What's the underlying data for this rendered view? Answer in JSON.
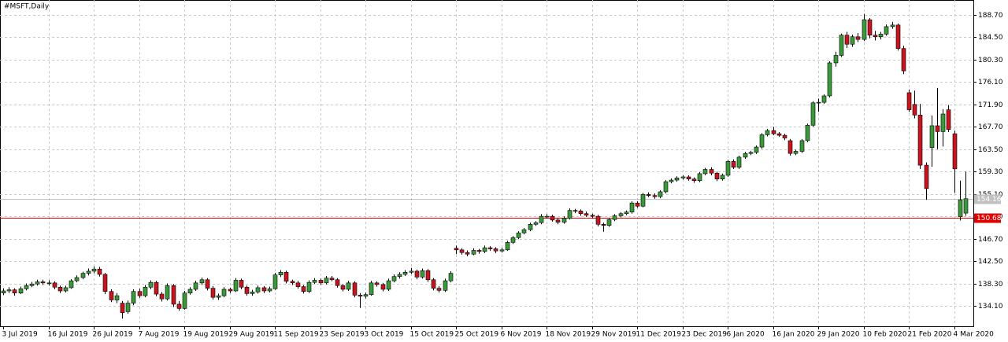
{
  "chart_data": {
    "type": "candlestick",
    "title": "#MSFT,Daily",
    "up_color": "#3a9a3a",
    "down_color": "#c8141e",
    "grid": true,
    "ylim": [
      130.26,
      191.5
    ],
    "yticks": [
      {
        "value": 134.1,
        "label": "134.10"
      },
      {
        "value": 138.3,
        "label": "138.30"
      },
      {
        "value": 142.5,
        "label": "142.50"
      },
      {
        "value": 146.7,
        "label": "146.70"
      },
      {
        "value": 150.9,
        "label": "150.90"
      },
      {
        "value": 155.1,
        "label": "155.10"
      },
      {
        "value": 159.3,
        "label": "159.30"
      },
      {
        "value": 163.5,
        "label": "163.50"
      },
      {
        "value": 167.7,
        "label": "167.70"
      },
      {
        "value": 171.9,
        "label": "171.90"
      },
      {
        "value": 176.1,
        "label": "176.10"
      },
      {
        "value": 180.3,
        "label": "180.30"
      },
      {
        "value": 184.5,
        "label": "184.50"
      },
      {
        "value": 188.7,
        "label": "188.70"
      }
    ],
    "price_lines": [
      {
        "value": 154.16,
        "color": "#c0c0c0"
      },
      {
        "value": 150.68,
        "color": "#e00000"
      }
    ],
    "categories": [
      "3 Jul 2019",
      null,
      null,
      null,
      null,
      null,
      null,
      null,
      "16 Jul 2019",
      null,
      null,
      null,
      null,
      null,
      null,
      null,
      "26 Jul 2019",
      null,
      null,
      null,
      null,
      null,
      null,
      null,
      "7 Aug 2019",
      null,
      null,
      null,
      null,
      null,
      null,
      null,
      "19 Aug 2019",
      null,
      null,
      null,
      null,
      null,
      null,
      null,
      "29 Aug 2019",
      null,
      null,
      null,
      null,
      null,
      null,
      null,
      "11 Sep 2019",
      null,
      null,
      null,
      null,
      null,
      null,
      null,
      "23 Sep 2019",
      null,
      null,
      null,
      null,
      null,
      null,
      null,
      "3 Oct 2019",
      null,
      null,
      null,
      null,
      null,
      null,
      null,
      "15 Oct 2019",
      null,
      null,
      null,
      null,
      null,
      null,
      null,
      "25 Oct 2019",
      null,
      null,
      null,
      null,
      null,
      null,
      null,
      "6 Nov 2019",
      null,
      null,
      null,
      null,
      null,
      null,
      null,
      "18 Nov 2019",
      null,
      null,
      null,
      null,
      null,
      null,
      null,
      "29 Nov 2019",
      null,
      null,
      null,
      null,
      null,
      null,
      null,
      "11 Dec 2019",
      null,
      null,
      null,
      null,
      null,
      null,
      null,
      "23 Dec 2019",
      null,
      null,
      null,
      null,
      null,
      null,
      null,
      "6 Jan 2020",
      null,
      null,
      null,
      null,
      null,
      null,
      null,
      "16 Jan 2020",
      null,
      null,
      null,
      null,
      null,
      null,
      null,
      "29 Jan 2020",
      null,
      null,
      null,
      null,
      null,
      null,
      null,
      "10 Feb 2020",
      null,
      null,
      null,
      null,
      null,
      null,
      null,
      "21 Feb 2020",
      null,
      null,
      null,
      null,
      null,
      null,
      null,
      "4 Mar 2020",
      null,
      null
    ],
    "ohlc": [
      [
        136.5,
        137.4,
        136.1,
        136.9
      ],
      [
        136.9,
        137.6,
        136.5,
        137.1
      ],
      [
        137.1,
        137.4,
        136.0,
        136.5
      ],
      [
        136.5,
        137.7,
        136.3,
        137.3
      ],
      [
        137.3,
        138.3,
        137.0,
        137.9
      ],
      [
        137.9,
        138.6,
        137.6,
        138.2
      ],
      [
        138.2,
        139.0,
        137.9,
        138.6
      ],
      [
        138.6,
        139.0,
        138.0,
        138.4
      ],
      [
        138.4,
        138.9,
        137.9,
        138.4
      ],
      [
        138.4,
        138.7,
        137.2,
        137.6
      ],
      [
        137.6,
        137.9,
        136.5,
        136.9
      ],
      [
        136.9,
        137.9,
        136.6,
        137.5
      ],
      [
        137.5,
        139.1,
        137.3,
        138.8
      ],
      [
        138.8,
        139.8,
        138.5,
        139.4
      ],
      [
        139.4,
        140.5,
        139.1,
        140.2
      ],
      [
        140.2,
        141.1,
        139.8,
        140.6
      ],
      [
        140.6,
        141.5,
        140.2,
        141.0
      ],
      [
        141.0,
        141.4,
        139.6,
        140.0
      ],
      [
        140.0,
        140.3,
        136.3,
        136.8
      ],
      [
        136.8,
        137.2,
        134.8,
        135.2
      ],
      [
        135.2,
        136.5,
        134.6,
        136.0
      ],
      [
        134.6,
        135.0,
        131.7,
        132.8
      ],
      [
        133.0,
        135.1,
        132.6,
        134.6
      ],
      [
        134.6,
        137.2,
        134.2,
        136.8
      ],
      [
        136.8,
        137.3,
        135.6,
        136.0
      ],
      [
        136.0,
        138.0,
        135.7,
        137.6
      ],
      [
        137.6,
        138.9,
        137.2,
        138.5
      ],
      [
        138.5,
        138.8,
        135.9,
        136.3
      ],
      [
        136.3,
        136.7,
        134.9,
        135.4
      ],
      [
        135.4,
        138.3,
        135.1,
        137.9
      ],
      [
        137.9,
        138.2,
        133.9,
        134.4
      ],
      [
        134.4,
        135.0,
        133.2,
        133.6
      ],
      [
        133.6,
        136.9,
        133.4,
        136.5
      ],
      [
        136.5,
        137.6,
        136.2,
        137.2
      ],
      [
        137.2,
        138.8,
        136.9,
        138.4
      ],
      [
        138.4,
        139.4,
        138.0,
        139.0
      ],
      [
        139.0,
        139.3,
        137.0,
        137.4
      ],
      [
        137.4,
        137.8,
        135.3,
        135.7
      ],
      [
        135.7,
        136.4,
        135.2,
        136.0
      ],
      [
        136.0,
        137.6,
        135.7,
        137.2
      ],
      [
        137.2,
        137.5,
        136.5,
        136.9
      ],
      [
        136.9,
        139.3,
        136.7,
        138.9
      ],
      [
        138.9,
        139.2,
        137.2,
        137.6
      ],
      [
        137.6,
        137.9,
        136.0,
        136.4
      ],
      [
        136.4,
        137.1,
        136.0,
        136.7
      ],
      [
        136.7,
        137.9,
        136.4,
        137.5
      ],
      [
        137.5,
        137.8,
        136.5,
        136.9
      ],
      [
        136.9,
        137.7,
        136.6,
        137.3
      ],
      [
        137.3,
        140.3,
        137.1,
        139.9
      ],
      [
        139.9,
        140.8,
        139.5,
        140.4
      ],
      [
        140.4,
        140.7,
        138.3,
        138.7
      ],
      [
        138.7,
        139.0,
        138.0,
        138.4
      ],
      [
        138.4,
        138.8,
        137.3,
        137.7
      ],
      [
        137.7,
        138.0,
        136.4,
        136.8
      ],
      [
        136.8,
        138.9,
        136.5,
        138.5
      ],
      [
        138.5,
        139.3,
        138.2,
        138.9
      ],
      [
        138.9,
        139.2,
        138.0,
        138.4
      ],
      [
        138.4,
        139.7,
        138.1,
        139.3
      ],
      [
        139.3,
        139.7,
        138.7,
        139.0
      ],
      [
        139.0,
        139.3,
        137.5,
        137.9
      ],
      [
        137.9,
        138.2,
        136.8,
        137.2
      ],
      [
        137.2,
        138.8,
        136.9,
        138.4
      ],
      [
        138.4,
        138.7,
        135.7,
        136.1
      ],
      [
        136.1,
        136.5,
        133.7,
        135.9
      ],
      [
        135.9,
        136.6,
        135.5,
        136.2
      ],
      [
        136.2,
        138.8,
        136.0,
        138.4
      ],
      [
        138.4,
        138.7,
        137.7,
        138.1
      ],
      [
        138.1,
        138.4,
        136.8,
        137.2
      ],
      [
        137.2,
        139.2,
        136.9,
        138.8
      ],
      [
        138.8,
        140.0,
        138.5,
        139.6
      ],
      [
        139.6,
        140.4,
        139.2,
        140.0
      ],
      [
        140.0,
        140.8,
        139.7,
        140.4
      ],
      [
        140.4,
        141.2,
        140.1,
        140.6
      ],
      [
        140.6,
        140.9,
        139.1,
        139.5
      ],
      [
        139.5,
        141.1,
        139.2,
        140.7
      ],
      [
        140.7,
        141.0,
        138.6,
        139.0
      ],
      [
        139.0,
        139.3,
        137.0,
        137.4
      ],
      [
        137.4,
        137.8,
        136.6,
        137.0
      ],
      [
        137.0,
        139.2,
        136.7,
        138.8
      ],
      [
        138.8,
        140.6,
        138.5,
        140.2
      ],
      [
        144.9,
        145.4,
        143.8,
        144.6
      ],
      [
        144.6,
        144.9,
        143.7,
        144.1
      ],
      [
        144.1,
        144.5,
        143.4,
        143.8
      ],
      [
        143.8,
        144.9,
        143.6,
        144.5
      ],
      [
        144.5,
        144.8,
        143.9,
        144.3
      ],
      [
        144.3,
        145.4,
        144.0,
        145.0
      ],
      [
        145.0,
        145.3,
        144.4,
        144.8
      ],
      [
        144.8,
        145.1,
        144.0,
        144.4
      ],
      [
        144.4,
        145.0,
        144.1,
        144.6
      ],
      [
        144.6,
        146.3,
        144.4,
        146.0
      ],
      [
        146.0,
        147.2,
        145.7,
        146.9
      ],
      [
        146.9,
        148.1,
        146.6,
        147.8
      ],
      [
        147.8,
        148.7,
        147.5,
        148.4
      ],
      [
        148.4,
        149.7,
        148.1,
        149.4
      ],
      [
        149.4,
        150.0,
        149.1,
        149.7
      ],
      [
        149.7,
        151.3,
        149.4,
        150.9
      ],
      [
        150.9,
        151.3,
        150.5,
        150.9
      ],
      [
        150.9,
        151.2,
        149.9,
        150.2
      ],
      [
        150.2,
        150.5,
        149.4,
        149.8
      ],
      [
        149.8,
        150.9,
        149.5,
        150.5
      ],
      [
        150.5,
        152.4,
        150.3,
        152.0
      ],
      [
        152.0,
        152.3,
        151.5,
        151.9
      ],
      [
        151.9,
        152.2,
        151.0,
        151.4
      ],
      [
        151.4,
        151.8,
        150.8,
        151.1
      ],
      [
        151.1,
        151.4,
        150.6,
        150.9
      ],
      [
        150.9,
        151.2,
        149.0,
        149.4
      ],
      [
        149.4,
        149.7,
        148.0,
        149.2
      ],
      [
        149.2,
        150.6,
        148.9,
        150.3
      ],
      [
        150.3,
        151.3,
        150.0,
        151.0
      ],
      [
        151.0,
        151.7,
        150.7,
        151.4
      ],
      [
        151.4,
        152.0,
        151.1,
        151.7
      ],
      [
        151.7,
        153.7,
        151.4,
        153.4
      ],
      [
        153.4,
        153.7,
        152.5,
        152.8
      ],
      [
        152.8,
        155.3,
        152.6,
        155.0
      ],
      [
        155.0,
        155.4,
        154.5,
        154.8
      ],
      [
        154.8,
        155.2,
        154.2,
        154.6
      ],
      [
        154.6,
        155.8,
        154.3,
        155.5
      ],
      [
        155.5,
        157.7,
        155.2,
        157.4
      ],
      [
        157.4,
        158.0,
        157.1,
        157.7
      ],
      [
        157.7,
        158.4,
        157.4,
        158.1
      ],
      [
        158.1,
        158.6,
        157.8,
        158.3
      ],
      [
        158.3,
        158.6,
        157.6,
        157.9
      ],
      [
        157.9,
        158.2,
        157.2,
        157.6
      ],
      [
        157.6,
        159.2,
        157.3,
        158.9
      ],
      [
        158.9,
        160.0,
        158.6,
        159.7
      ],
      [
        159.7,
        160.1,
        158.6,
        159.0
      ],
      [
        159.0,
        159.3,
        157.5,
        157.9
      ],
      [
        157.9,
        158.9,
        157.6,
        158.6
      ],
      [
        158.6,
        161.5,
        158.3,
        161.2
      ],
      [
        161.2,
        161.6,
        159.8,
        160.1
      ],
      [
        160.1,
        162.3,
        159.8,
        162.0
      ],
      [
        162.0,
        163.0,
        161.7,
        162.7
      ],
      [
        162.7,
        163.2,
        162.4,
        162.9
      ],
      [
        162.9,
        164.2,
        162.6,
        163.9
      ],
      [
        163.9,
        166.5,
        163.6,
        166.2
      ],
      [
        166.2,
        167.3,
        165.9,
        167.0
      ],
      [
        167.0,
        167.7,
        166.1,
        166.4
      ],
      [
        166.4,
        166.7,
        165.8,
        166.1
      ],
      [
        166.1,
        166.4,
        165.2,
        165.6
      ],
      [
        165.1,
        165.4,
        162.3,
        162.7
      ],
      [
        162.7,
        163.4,
        162.4,
        163.1
      ],
      [
        163.1,
        165.4,
        162.8,
        165.1
      ],
      [
        165.1,
        168.3,
        164.8,
        168.0
      ],
      [
        168.0,
        172.5,
        167.7,
        172.2
      ],
      [
        172.2,
        173.0,
        170.5,
        172.3
      ],
      [
        172.3,
        173.8,
        172.0,
        173.5
      ],
      [
        173.5,
        180.0,
        173.2,
        179.7
      ],
      [
        179.7,
        181.8,
        179.0,
        181.1
      ],
      [
        181.1,
        185.2,
        180.8,
        184.9
      ],
      [
        184.9,
        185.5,
        182.5,
        183.2
      ],
      [
        183.2,
        185.0,
        182.7,
        184.6
      ],
      [
        184.6,
        185.3,
        183.6,
        184.1
      ],
      [
        184.1,
        188.9,
        183.8,
        187.8
      ],
      [
        187.8,
        188.1,
        184.3,
        184.9
      ],
      [
        184.9,
        185.7,
        183.9,
        184.6
      ],
      [
        184.6,
        185.5,
        184.1,
        185.1
      ],
      [
        185.1,
        186.9,
        184.8,
        186.5
      ],
      [
        186.5,
        187.4,
        186.1,
        186.8
      ],
      [
        186.8,
        187.1,
        182.0,
        182.4
      ],
      [
        182.4,
        182.9,
        177.6,
        178.2
      ],
      [
        174.1,
        174.7,
        170.5,
        170.9
      ],
      [
        171.9,
        174.5,
        169.3,
        169.9
      ],
      [
        169.9,
        172.0,
        159.8,
        160.5
      ],
      [
        160.5,
        161.0,
        154.0,
        156.1
      ],
      [
        163.8,
        169.8,
        160.2,
        167.9
      ],
      [
        167.9,
        175.0,
        163.5,
        166.8
      ],
      [
        166.8,
        171.0,
        164.0,
        170.1
      ],
      [
        170.9,
        171.8,
        166.7,
        167.2
      ],
      [
        166.4,
        167.0,
        155.3,
        159.8
      ],
      [
        150.8,
        157.6,
        150.1,
        154.0
      ],
      [
        151.5,
        159.3,
        151.0,
        154.2
      ]
    ]
  }
}
